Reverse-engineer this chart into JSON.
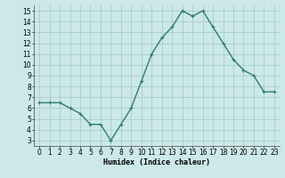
{
  "x": [
    0,
    1,
    2,
    3,
    4,
    5,
    6,
    7,
    8,
    9,
    10,
    11,
    12,
    13,
    14,
    15,
    16,
    17,
    18,
    19,
    20,
    21,
    22,
    23
  ],
  "y": [
    6.5,
    6.5,
    6.5,
    6.0,
    5.5,
    4.5,
    4.5,
    3.0,
    4.5,
    6.0,
    8.5,
    11.0,
    12.5,
    13.5,
    15.0,
    14.5,
    15.0,
    13.5,
    12.0,
    10.5,
    9.5,
    9.0,
    7.5,
    7.5
  ],
  "line_color": "#2e7d6e",
  "marker": "+",
  "marker_size": 3,
  "bg_color": "#cce8e8",
  "grid_color": "#a0c8c8",
  "xlabel": "Humidex (Indice chaleur)",
  "xlabel_fontsize": 6,
  "tick_fontsize": 5.5,
  "xlim": [
    -0.5,
    23.5
  ],
  "ylim": [
    2.5,
    15.5
  ],
  "yticks": [
    3,
    4,
    5,
    6,
    7,
    8,
    9,
    10,
    11,
    12,
    13,
    14,
    15
  ],
  "xticks": [
    0,
    1,
    2,
    3,
    4,
    5,
    6,
    7,
    8,
    9,
    10,
    11,
    12,
    13,
    14,
    15,
    16,
    17,
    18,
    19,
    20,
    21,
    22,
    23
  ],
  "line_width": 1.0,
  "marker_edge_width": 0.8
}
